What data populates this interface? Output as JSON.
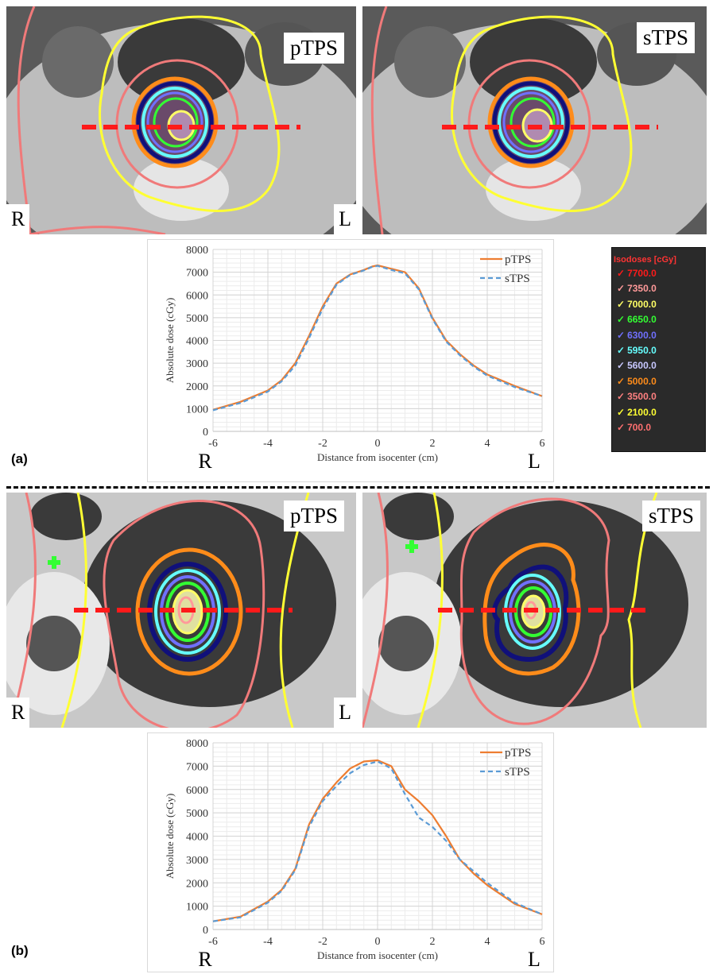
{
  "panel_a": {
    "label": "(a)",
    "left_image": {
      "tag": "pTPS",
      "side_left": "R",
      "side_right": "L"
    },
    "right_image": {
      "tag": "sTPS"
    },
    "plot": {
      "xticks_side_left": "R",
      "xticks_side_right": "L"
    }
  },
  "panel_b": {
    "label": "(b)",
    "left_image": {
      "tag": "pTPS",
      "side_left": "R",
      "side_right": "L"
    },
    "right_image": {
      "tag": "sTPS"
    },
    "plot": {
      "xticks_side_left": "R",
      "xticks_side_right": "L"
    }
  },
  "isodose_legend": {
    "title": "Isodoses [cGy]",
    "items": [
      {
        "value": "7700.0",
        "color": "#ff1a1a"
      },
      {
        "value": "7350.0",
        "color": "#ff9a9a"
      },
      {
        "value": "7000.0",
        "color": "#ffff66"
      },
      {
        "value": "6650.0",
        "color": "#33ff33"
      },
      {
        "value": "6300.0",
        "color": "#7070ff"
      },
      {
        "value": "5950.0",
        "color": "#66ffff"
      },
      {
        "value": "5600.0",
        "color": "#c8c8ff"
      },
      {
        "value": "5000.0",
        "color": "#ff8c1a"
      },
      {
        "value": "3500.0",
        "color": "#ff8080"
      },
      {
        "value": "2100.0",
        "color": "#ffff33"
      },
      {
        "value": "700.0",
        "color": "#ff7070"
      }
    ]
  },
  "chart_data": [
    {
      "type": "line",
      "xlabel": "Distance from isocenter (cm)",
      "ylabel": "Absolute dose (cGy)",
      "xlim": [
        -6,
        6
      ],
      "ylim": [
        0,
        8000
      ],
      "xticks": [
        "-6",
        "-4",
        "-2",
        "0",
        "2",
        "4",
        "6"
      ],
      "yticks": [
        "0",
        "1000",
        "2000",
        "3000",
        "4000",
        "5000",
        "6000",
        "7000",
        "8000"
      ],
      "grid": true,
      "legend": "top-right",
      "series": [
        {
          "name": "pTPS",
          "color": "#ed7d31",
          "dash": false,
          "x": [
            -6,
            -5,
            -4,
            -3.5,
            -3,
            -2.5,
            -2,
            -1.5,
            -1,
            -0.5,
            -0.2,
            0,
            0.5,
            1,
            1.5,
            2,
            2.5,
            3,
            3.5,
            4,
            5,
            6
          ],
          "y": [
            950,
            1300,
            1800,
            2250,
            3000,
            4200,
            5500,
            6500,
            6900,
            7100,
            7250,
            7300,
            7150,
            7000,
            6300,
            5000,
            4000,
            3400,
            2900,
            2500,
            2000,
            1550
          ]
        },
        {
          "name": "sTPS",
          "color": "#5b9bd5",
          "dash": true,
          "x": [
            -6,
            -5,
            -4,
            -3.5,
            -3,
            -2.5,
            -2,
            -1.5,
            -1,
            -0.5,
            -0.2,
            0,
            0.5,
            1,
            1.5,
            2,
            2.5,
            3,
            3.5,
            4,
            5,
            6
          ],
          "y": [
            930,
            1250,
            1750,
            2200,
            2900,
            4100,
            5400,
            6450,
            6880,
            7080,
            7230,
            7280,
            7100,
            6950,
            6250,
            4950,
            3950,
            3350,
            2850,
            2450,
            1950,
            1550
          ]
        }
      ]
    },
    {
      "type": "line",
      "xlabel": "Distance from isocenter (cm)",
      "ylabel": "Absolute dose (cGy)",
      "xlim": [
        -6,
        6
      ],
      "ylim": [
        0,
        8000
      ],
      "xticks": [
        "-6",
        "-4",
        "-2",
        "0",
        "2",
        "4",
        "6"
      ],
      "yticks": [
        "0",
        "1000",
        "2000",
        "3000",
        "4000",
        "5000",
        "6000",
        "7000",
        "8000"
      ],
      "grid": true,
      "legend": "top-right",
      "series": [
        {
          "name": "pTPS",
          "color": "#ed7d31",
          "dash": false,
          "x": [
            -6,
            -5,
            -4,
            -3.5,
            -3,
            -2.5,
            -2,
            -1.5,
            -1,
            -0.5,
            0,
            0.5,
            1,
            1.5,
            2,
            2.5,
            3,
            3.5,
            4,
            5,
            6
          ],
          "y": [
            350,
            550,
            1200,
            1700,
            2600,
            4500,
            5600,
            6300,
            6900,
            7200,
            7250,
            7000,
            6000,
            5500,
            4900,
            4000,
            3000,
            2400,
            1900,
            1100,
            650
          ]
        },
        {
          "name": "sTPS",
          "color": "#5b9bd5",
          "dash": true,
          "x": [
            -6,
            -5,
            -4,
            -3.5,
            -3,
            -2.5,
            -2,
            -1.5,
            -1,
            -0.5,
            0,
            0.5,
            1,
            1.5,
            2,
            2.5,
            3,
            3.5,
            4,
            5,
            6
          ],
          "y": [
            350,
            520,
            1150,
            1650,
            2550,
            4400,
            5500,
            6150,
            6700,
            7050,
            7200,
            6900,
            5800,
            4800,
            4400,
            3800,
            3000,
            2500,
            2000,
            1150,
            650
          ]
        }
      ]
    }
  ]
}
